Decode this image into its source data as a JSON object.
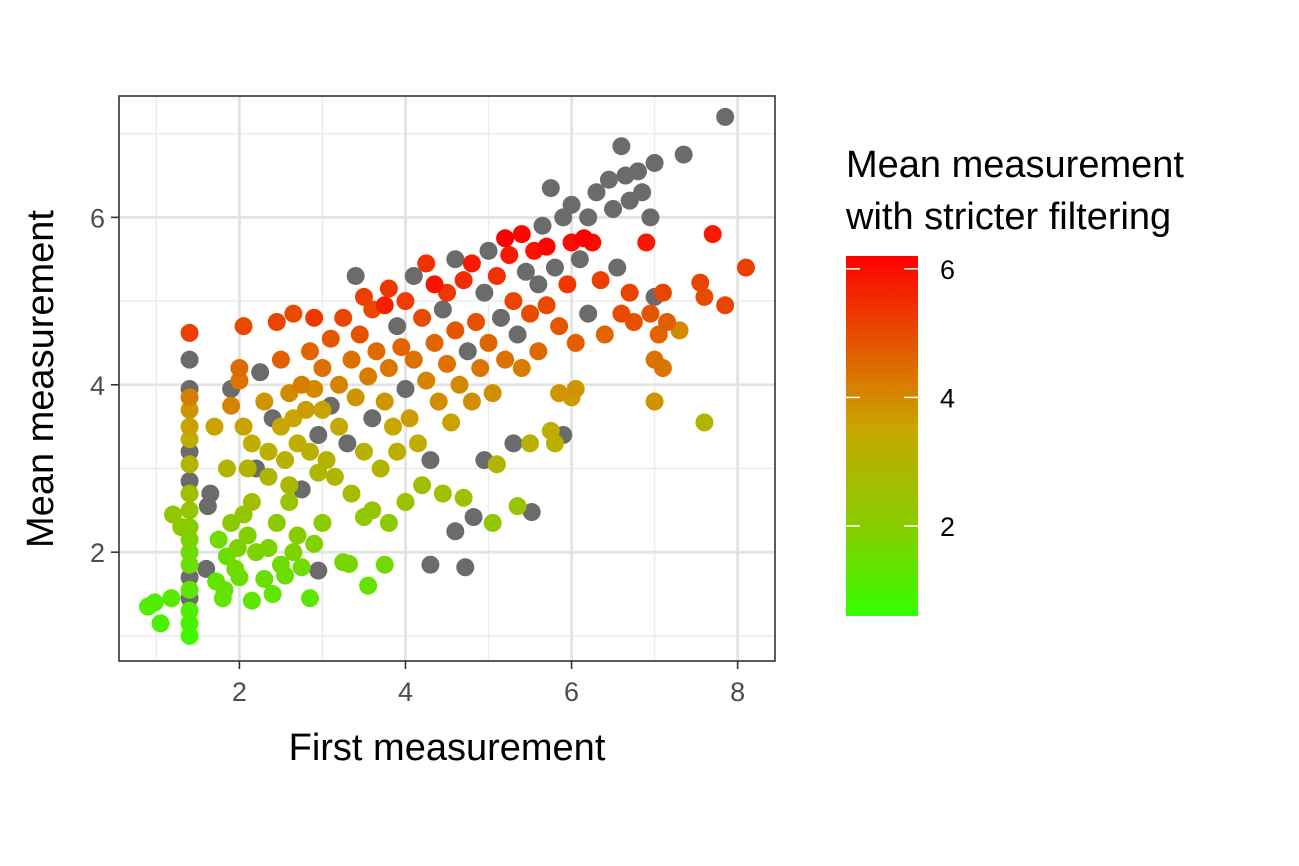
{
  "chart_data": {
    "type": "scatter",
    "xlabel": "First measurement",
    "ylabel": "Mean measurement",
    "xlim": [
      0.55,
      8.45
    ],
    "ylim": [
      0.7,
      7.45
    ],
    "x_major_ticks": [
      2,
      4,
      6,
      8
    ],
    "x_minor_ticks": [
      1,
      3,
      5,
      7
    ],
    "y_major_ticks": [
      2,
      4,
      6
    ],
    "y_minor_ticks": [
      1,
      3,
      5,
      7
    ],
    "x_tick_labels": [
      "2",
      "4",
      "6",
      "8"
    ],
    "y_tick_labels": [
      "2",
      "4",
      "6"
    ],
    "grid": true,
    "point_style": "filled circle",
    "missing_color": "#6b6b6b",
    "legend": {
      "title_lines": [
        "Mean measurement",
        "with stricter filtering"
      ],
      "placement": "right",
      "type": "colorbar",
      "range": [
        0.6,
        6.2
      ],
      "breaks": [
        2,
        4,
        6
      ],
      "break_labels": [
        "2",
        "4",
        "6"
      ],
      "gradient": [
        {
          "value": 0.6,
          "color": "#33ff00"
        },
        {
          "value": 2.0,
          "color": "#88cc00"
        },
        {
          "value": 3.5,
          "color": "#c8a800"
        },
        {
          "value": 4.5,
          "color": "#de6a00"
        },
        {
          "value": 6.2,
          "color": "#ff0000"
        }
      ]
    },
    "points": [
      {
        "x": 1.4,
        "y": 1.0,
        "c": 0.8
      },
      {
        "x": 1.4,
        "y": 1.15,
        "c": 0.9
      },
      {
        "x": 1.4,
        "y": 1.3,
        "c": 1.1
      },
      {
        "x": 1.4,
        "y": 1.45,
        "c": null
      },
      {
        "x": 1.4,
        "y": 1.55,
        "c": 1.3
      },
      {
        "x": 1.4,
        "y": 1.7,
        "c": null
      },
      {
        "x": 1.4,
        "y": 1.85,
        "c": 1.5
      },
      {
        "x": 1.4,
        "y": 2.0,
        "c": 1.6
      },
      {
        "x": 1.4,
        "y": 2.15,
        "c": 1.8
      },
      {
        "x": 1.4,
        "y": 2.3,
        "c": 2.0
      },
      {
        "x": 1.4,
        "y": 2.5,
        "c": 2.3
      },
      {
        "x": 1.4,
        "y": 2.7,
        "c": 2.6
      },
      {
        "x": 1.4,
        "y": 2.85,
        "c": null
      },
      {
        "x": 1.4,
        "y": 3.05,
        "c": 3.0
      },
      {
        "x": 1.4,
        "y": 3.2,
        "c": null
      },
      {
        "x": 1.4,
        "y": 3.35,
        "c": 3.3
      },
      {
        "x": 1.4,
        "y": 3.5,
        "c": 3.6
      },
      {
        "x": 1.4,
        "y": 3.7,
        "c": 3.8
      },
      {
        "x": 1.4,
        "y": 3.85,
        "c": 4.2
      },
      {
        "x": 1.4,
        "y": 3.95,
        "c": null
      },
      {
        "x": 1.4,
        "y": 4.3,
        "c": null
      },
      {
        "x": 1.4,
        "y": 4.62,
        "c": 5.2
      },
      {
        "x": 0.9,
        "y": 1.35,
        "c": 1.0
      },
      {
        "x": 0.98,
        "y": 1.4,
        "c": 1.1
      },
      {
        "x": 1.05,
        "y": 1.15,
        "c": 1.0
      },
      {
        "x": 1.18,
        "y": 1.45,
        "c": 1.2
      },
      {
        "x": 1.2,
        "y": 2.45,
        "c": 2.2
      },
      {
        "x": 1.3,
        "y": 2.3,
        "c": 2.0
      },
      {
        "x": 1.62,
        "y": 2.55,
        "c": null
      },
      {
        "x": 1.65,
        "y": 2.7,
        "c": null
      },
      {
        "x": 1.72,
        "y": 1.65,
        "c": 1.3
      },
      {
        "x": 1.75,
        "y": 2.15,
        "c": 1.6
      },
      {
        "x": 1.8,
        "y": 1.45,
        "c": 1.3
      },
      {
        "x": 1.82,
        "y": 1.55,
        "c": 1.4
      },
      {
        "x": 1.85,
        "y": 1.95,
        "c": 1.5
      },
      {
        "x": 1.9,
        "y": 2.35,
        "c": 2.0
      },
      {
        "x": 1.95,
        "y": 1.8,
        "c": 1.6
      },
      {
        "x": 1.98,
        "y": 2.05,
        "c": 1.8
      },
      {
        "x": 2.0,
        "y": 1.7,
        "c": 1.5
      },
      {
        "x": 2.05,
        "y": 2.45,
        "c": 2.2
      },
      {
        "x": 2.1,
        "y": 2.2,
        "c": 1.9
      },
      {
        "x": 2.15,
        "y": 1.42,
        "c": 1.3
      },
      {
        "x": 2.2,
        "y": 2.0,
        "c": 1.8
      },
      {
        "x": 2.3,
        "y": 1.68,
        "c": 1.5
      },
      {
        "x": 2.35,
        "y": 2.05,
        "c": 1.8
      },
      {
        "x": 2.4,
        "y": 1.5,
        "c": 1.3
      },
      {
        "x": 2.45,
        "y": 2.35,
        "c": 2.1
      },
      {
        "x": 2.5,
        "y": 1.85,
        "c": 1.6
      },
      {
        "x": 2.55,
        "y": 1.72,
        "c": 1.5
      },
      {
        "x": 2.6,
        "y": 2.6,
        "c": 2.4
      },
      {
        "x": 2.65,
        "y": 2.0,
        "c": 1.8
      },
      {
        "x": 2.7,
        "y": 2.2,
        "c": 2.0
      },
      {
        "x": 2.75,
        "y": 1.82,
        "c": 1.6
      },
      {
        "x": 2.85,
        "y": 1.45,
        "c": 1.3
      },
      {
        "x": 2.9,
        "y": 2.1,
        "c": 1.9
      },
      {
        "x": 2.95,
        "y": 1.78,
        "c": null
      },
      {
        "x": 3.0,
        "y": 2.35,
        "c": 2.1
      },
      {
        "x": 3.25,
        "y": 1.88,
        "c": 1.7
      },
      {
        "x": 3.32,
        "y": 1.86,
        "c": 1.7
      },
      {
        "x": 3.55,
        "y": 1.6,
        "c": 1.4
      },
      {
        "x": 3.75,
        "y": 1.85,
        "c": 1.6
      },
      {
        "x": 3.8,
        "y": 2.35,
        "c": 2.1
      },
      {
        "x": 3.5,
        "y": 2.42,
        "c": 2.2
      },
      {
        "x": 3.6,
        "y": 2.5,
        "c": 2.3
      },
      {
        "x": 4.0,
        "y": 2.6,
        "c": 2.4
      },
      {
        "x": 4.2,
        "y": 2.8,
        "c": 2.6
      },
      {
        "x": 4.3,
        "y": 1.85,
        "c": null
      },
      {
        "x": 4.45,
        "y": 2.7,
        "c": 2.5
      },
      {
        "x": 4.6,
        "y": 2.25,
        "c": null
      },
      {
        "x": 4.7,
        "y": 2.65,
        "c": 2.5
      },
      {
        "x": 4.72,
        "y": 1.82,
        "c": null
      },
      {
        "x": 4.82,
        "y": 2.42,
        "c": null
      },
      {
        "x": 4.95,
        "y": 3.1,
        "c": null
      },
      {
        "x": 5.05,
        "y": 2.35,
        "c": 2.2
      },
      {
        "x": 5.1,
        "y": 3.05,
        "c": 2.9
      },
      {
        "x": 5.3,
        "y": 3.3,
        "c": null
      },
      {
        "x": 5.35,
        "y": 2.55,
        "c": 2.3
      },
      {
        "x": 5.5,
        "y": 3.3,
        "c": 3.1
      },
      {
        "x": 5.52,
        "y": 2.48,
        "c": null
      },
      {
        "x": 5.75,
        "y": 3.45,
        "c": 3.3
      },
      {
        "x": 5.8,
        "y": 3.3,
        "c": 3.1
      },
      {
        "x": 5.85,
        "y": 3.9,
        "c": 3.8
      },
      {
        "x": 5.9,
        "y": 3.4,
        "c": null
      },
      {
        "x": 6.0,
        "y": 3.85,
        "c": 3.7
      },
      {
        "x": 6.05,
        "y": 3.95,
        "c": 3.8
      },
      {
        "x": 7.0,
        "y": 3.8,
        "c": 3.8
      },
      {
        "x": 7.6,
        "y": 3.55,
        "c": 3.0
      },
      {
        "x": 1.6,
        "y": 1.8,
        "c": null
      },
      {
        "x": 1.7,
        "y": 3.5,
        "c": 3.6
      },
      {
        "x": 1.85,
        "y": 3.0,
        "c": 3.0
      },
      {
        "x": 1.9,
        "y": 3.75,
        "c": 4.1
      },
      {
        "x": 1.9,
        "y": 3.95,
        "c": null
      },
      {
        "x": 2.0,
        "y": 4.05,
        "c": 4.3
      },
      {
        "x": 2.0,
        "y": 4.2,
        "c": 4.5
      },
      {
        "x": 2.05,
        "y": 3.5,
        "c": 3.6
      },
      {
        "x": 2.05,
        "y": 4.7,
        "c": 5.0
      },
      {
        "x": 2.1,
        "y": 3.0,
        "c": 3.0
      },
      {
        "x": 2.15,
        "y": 3.3,
        "c": 3.3
      },
      {
        "x": 2.15,
        "y": 2.6,
        "c": 2.6
      },
      {
        "x": 2.2,
        "y": 3.0,
        "c": null
      },
      {
        "x": 2.25,
        "y": 4.15,
        "c": null
      },
      {
        "x": 2.3,
        "y": 3.8,
        "c": 3.8
      },
      {
        "x": 2.35,
        "y": 3.2,
        "c": 3.2
      },
      {
        "x": 2.35,
        "y": 2.9,
        "c": 2.9
      },
      {
        "x": 2.4,
        "y": 3.6,
        "c": null
      },
      {
        "x": 2.45,
        "y": 4.75,
        "c": 5.1
      },
      {
        "x": 2.5,
        "y": 3.5,
        "c": 3.5
      },
      {
        "x": 2.5,
        "y": 4.3,
        "c": 4.7
      },
      {
        "x": 2.55,
        "y": 3.1,
        "c": 3.1
      },
      {
        "x": 2.6,
        "y": 3.9,
        "c": 4.0
      },
      {
        "x": 2.6,
        "y": 2.8,
        "c": 2.8
      },
      {
        "x": 2.65,
        "y": 3.6,
        "c": 3.5
      },
      {
        "x": 2.65,
        "y": 4.85,
        "c": 5.0
      },
      {
        "x": 2.7,
        "y": 3.3,
        "c": 3.3
      },
      {
        "x": 2.75,
        "y": 4.0,
        "c": 4.2
      },
      {
        "x": 2.75,
        "y": 2.75,
        "c": null
      },
      {
        "x": 2.8,
        "y": 3.7,
        "c": 3.7
      },
      {
        "x": 2.85,
        "y": 4.4,
        "c": 4.6
      },
      {
        "x": 2.85,
        "y": 3.2,
        "c": 3.2
      },
      {
        "x": 2.9,
        "y": 4.8,
        "c": 5.3
      },
      {
        "x": 2.9,
        "y": 3.95,
        "c": 4.0
      },
      {
        "x": 2.95,
        "y": 3.4,
        "c": null
      },
      {
        "x": 2.95,
        "y": 2.95,
        "c": 2.9
      },
      {
        "x": 3.0,
        "y": 4.2,
        "c": 4.4
      },
      {
        "x": 3.0,
        "y": 3.7,
        "c": 3.6
      },
      {
        "x": 3.05,
        "y": 3.1,
        "c": 3.1
      },
      {
        "x": 3.1,
        "y": 4.55,
        "c": 4.8
      },
      {
        "x": 3.1,
        "y": 3.75,
        "c": null
      },
      {
        "x": 3.15,
        "y": 2.9,
        "c": 2.9
      },
      {
        "x": 3.2,
        "y": 4.0,
        "c": 4.1
      },
      {
        "x": 3.2,
        "y": 3.5,
        "c": 3.4
      },
      {
        "x": 3.25,
        "y": 4.8,
        "c": 5.1
      },
      {
        "x": 3.3,
        "y": 3.3,
        "c": null
      },
      {
        "x": 3.35,
        "y": 4.3,
        "c": 4.4
      },
      {
        "x": 3.35,
        "y": 2.7,
        "c": 2.7
      },
      {
        "x": 3.4,
        "y": 5.3,
        "c": null
      },
      {
        "x": 3.4,
        "y": 3.85,
        "c": 3.8
      },
      {
        "x": 3.45,
        "y": 4.6,
        "c": 4.9
      },
      {
        "x": 3.5,
        "y": 3.2,
        "c": 3.1
      },
      {
        "x": 3.5,
        "y": 5.05,
        "c": 5.2
      },
      {
        "x": 3.55,
        "y": 4.1,
        "c": 4.2
      },
      {
        "x": 3.6,
        "y": 3.6,
        "c": null
      },
      {
        "x": 3.6,
        "y": 4.9,
        "c": 5.0
      },
      {
        "x": 3.65,
        "y": 4.4,
        "c": 4.5
      },
      {
        "x": 3.7,
        "y": 3.0,
        "c": 3.0
      },
      {
        "x": 3.75,
        "y": 4.95,
        "c": 5.7
      },
      {
        "x": 3.75,
        "y": 3.8,
        "c": 3.8
      },
      {
        "x": 3.8,
        "y": 5.15,
        "c": 5.3
      },
      {
        "x": 3.8,
        "y": 4.2,
        "c": 4.3
      },
      {
        "x": 3.85,
        "y": 3.5,
        "c": 3.5
      },
      {
        "x": 3.9,
        "y": 4.7,
        "c": null
      },
      {
        "x": 3.9,
        "y": 3.2,
        "c": 3.2
      },
      {
        "x": 3.95,
        "y": 4.45,
        "c": 4.6
      },
      {
        "x": 4.0,
        "y": 3.95,
        "c": null
      },
      {
        "x": 4.0,
        "y": 5.0,
        "c": 5.2
      },
      {
        "x": 4.05,
        "y": 3.6,
        "c": 3.7
      },
      {
        "x": 4.1,
        "y": 4.3,
        "c": 4.4
      },
      {
        "x": 4.1,
        "y": 5.3,
        "c": null
      },
      {
        "x": 4.15,
        "y": 3.3,
        "c": 3.3
      },
      {
        "x": 4.2,
        "y": 4.8,
        "c": 5.0
      },
      {
        "x": 4.25,
        "y": 5.45,
        "c": 5.4
      },
      {
        "x": 4.25,
        "y": 4.05,
        "c": 4.1
      },
      {
        "x": 4.3,
        "y": 3.1,
        "c": null
      },
      {
        "x": 4.35,
        "y": 5.2,
        "c": 5.9
      },
      {
        "x": 4.35,
        "y": 4.5,
        "c": 4.6
      },
      {
        "x": 4.4,
        "y": 3.8,
        "c": 3.9
      },
      {
        "x": 4.45,
        "y": 4.9,
        "c": null
      },
      {
        "x": 4.5,
        "y": 4.25,
        "c": 4.4
      },
      {
        "x": 4.5,
        "y": 5.1,
        "c": 5.3
      },
      {
        "x": 4.55,
        "y": 3.55,
        "c": 3.6
      },
      {
        "x": 4.6,
        "y": 4.65,
        "c": 4.8
      },
      {
        "x": 4.6,
        "y": 5.5,
        "c": null
      },
      {
        "x": 4.65,
        "y": 4.0,
        "c": 4.0
      },
      {
        "x": 4.7,
        "y": 5.25,
        "c": 5.5
      },
      {
        "x": 4.75,
        "y": 4.4,
        "c": null
      },
      {
        "x": 4.8,
        "y": 3.8,
        "c": 3.9
      },
      {
        "x": 4.8,
        "y": 5.45,
        "c": 5.8
      },
      {
        "x": 4.85,
        "y": 4.75,
        "c": 4.9
      },
      {
        "x": 4.9,
        "y": 4.2,
        "c": 4.3
      },
      {
        "x": 4.95,
        "y": 5.1,
        "c": null
      },
      {
        "x": 5.0,
        "y": 5.6,
        "c": null
      },
      {
        "x": 5.0,
        "y": 4.5,
        "c": 4.6
      },
      {
        "x": 5.05,
        "y": 3.9,
        "c": 3.9
      },
      {
        "x": 5.1,
        "y": 5.3,
        "c": 5.4
      },
      {
        "x": 5.15,
        "y": 4.8,
        "c": null
      },
      {
        "x": 5.2,
        "y": 5.75,
        "c": 6.2
      },
      {
        "x": 5.2,
        "y": 4.3,
        "c": 4.4
      },
      {
        "x": 5.25,
        "y": 5.55,
        "c": 5.8
      },
      {
        "x": 5.3,
        "y": 5.0,
        "c": 5.1
      },
      {
        "x": 5.35,
        "y": 4.6,
        "c": null
      },
      {
        "x": 5.4,
        "y": 5.8,
        "c": 6.1
      },
      {
        "x": 5.4,
        "y": 4.2,
        "c": 4.2
      },
      {
        "x": 5.45,
        "y": 5.35,
        "c": null
      },
      {
        "x": 5.5,
        "y": 4.85,
        "c": 5.0
      },
      {
        "x": 5.55,
        "y": 5.6,
        "c": 5.9
      },
      {
        "x": 5.6,
        "y": 4.4,
        "c": 4.5
      },
      {
        "x": 5.6,
        "y": 5.2,
        "c": null
      },
      {
        "x": 5.65,
        "y": 5.9,
        "c": null
      },
      {
        "x": 5.7,
        "y": 5.65,
        "c": 6.1
      },
      {
        "x": 5.7,
        "y": 4.95,
        "c": 5.0
      },
      {
        "x": 5.75,
        "y": 6.35,
        "c": null
      },
      {
        "x": 5.8,
        "y": 5.4,
        "c": null
      },
      {
        "x": 5.85,
        "y": 4.7,
        "c": 4.8
      },
      {
        "x": 5.9,
        "y": 6.0,
        "c": null
      },
      {
        "x": 5.95,
        "y": 5.2,
        "c": 5.3
      },
      {
        "x": 6.0,
        "y": 6.15,
        "c": null
      },
      {
        "x": 6.0,
        "y": 5.7,
        "c": 6.0
      },
      {
        "x": 6.05,
        "y": 4.5,
        "c": 4.7
      },
      {
        "x": 6.1,
        "y": 5.5,
        "c": null
      },
      {
        "x": 6.15,
        "y": 5.75,
        "c": 6.2
      },
      {
        "x": 6.2,
        "y": 6.0,
        "c": null
      },
      {
        "x": 6.2,
        "y": 4.85,
        "c": null
      },
      {
        "x": 6.25,
        "y": 5.7,
        "c": 6.0
      },
      {
        "x": 6.3,
        "y": 6.3,
        "c": null
      },
      {
        "x": 6.35,
        "y": 5.25,
        "c": 5.2
      },
      {
        "x": 6.4,
        "y": 4.6,
        "c": 4.6
      },
      {
        "x": 6.45,
        "y": 6.45,
        "c": null
      },
      {
        "x": 6.5,
        "y": 6.1,
        "c": null
      },
      {
        "x": 6.55,
        "y": 5.4,
        "c": null
      },
      {
        "x": 6.6,
        "y": 6.85,
        "c": null
      },
      {
        "x": 6.6,
        "y": 4.85,
        "c": 5.0
      },
      {
        "x": 6.65,
        "y": 6.5,
        "c": null
      },
      {
        "x": 6.7,
        "y": 6.2,
        "c": null
      },
      {
        "x": 6.7,
        "y": 5.1,
        "c": 5.1
      },
      {
        "x": 6.75,
        "y": 4.75,
        "c": 4.9
      },
      {
        "x": 6.8,
        "y": 6.55,
        "c": null
      },
      {
        "x": 6.85,
        "y": 6.3,
        "c": null
      },
      {
        "x": 6.9,
        "y": 5.7,
        "c": 5.8
      },
      {
        "x": 6.95,
        "y": 6.0,
        "c": null
      },
      {
        "x": 6.95,
        "y": 4.85,
        "c": 4.8
      },
      {
        "x": 7.0,
        "y": 6.65,
        "c": null
      },
      {
        "x": 7.0,
        "y": 5.05,
        "c": null
      },
      {
        "x": 7.0,
        "y": 4.3,
        "c": 4.4
      },
      {
        "x": 7.05,
        "y": 4.6,
        "c": 4.6
      },
      {
        "x": 7.1,
        "y": 5.1,
        "c": 5.1
      },
      {
        "x": 7.1,
        "y": 4.2,
        "c": 4.3
      },
      {
        "x": 7.15,
        "y": 4.75,
        "c": 4.7
      },
      {
        "x": 7.3,
        "y": 4.65,
        "c": 4.0
      },
      {
        "x": 7.35,
        "y": 6.75,
        "c": null
      },
      {
        "x": 7.55,
        "y": 5.22,
        "c": 5.1
      },
      {
        "x": 7.6,
        "y": 5.05,
        "c": 5.0
      },
      {
        "x": 7.7,
        "y": 5.8,
        "c": 5.8
      },
      {
        "x": 7.85,
        "y": 7.2,
        "c": null
      },
      {
        "x": 7.85,
        "y": 4.95,
        "c": 5.1
      },
      {
        "x": 8.1,
        "y": 5.4,
        "c": 5.2
      }
    ]
  }
}
